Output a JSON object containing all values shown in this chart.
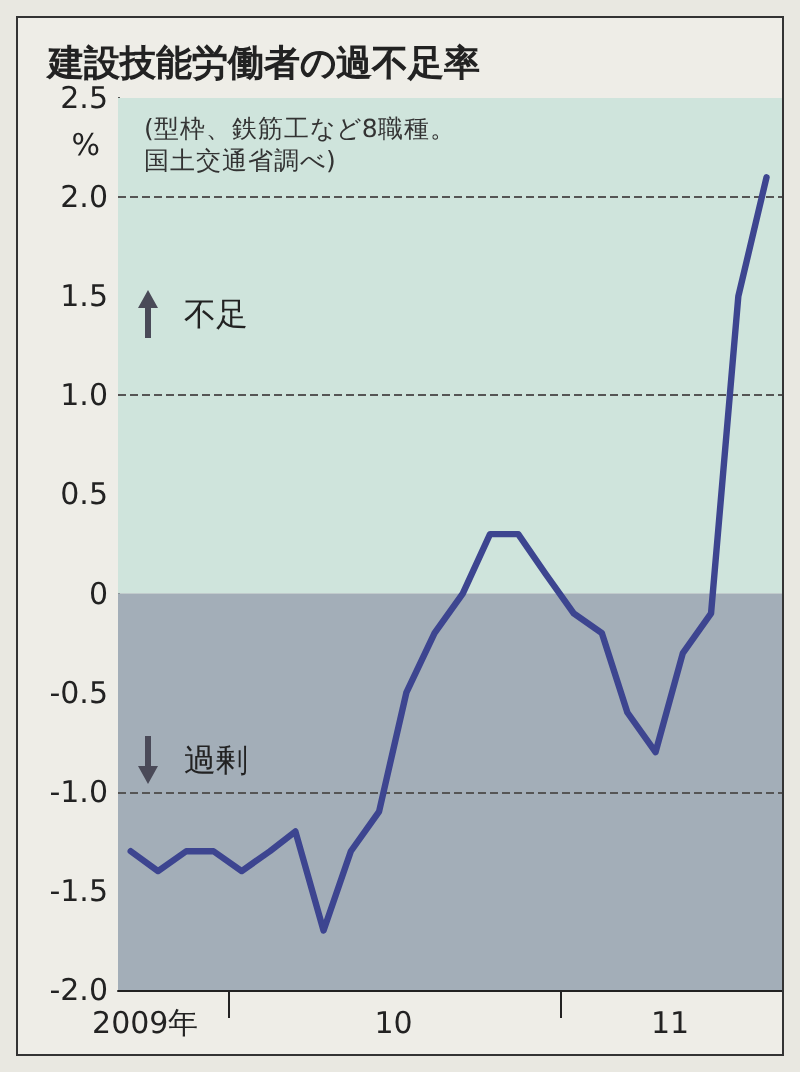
{
  "chart_data": {
    "type": "line",
    "title": "建設技能労働者の過不足率",
    "subtitle": "(型枠、鉄筋工など8職種。国土交通省調べ)",
    "ylabel": "%",
    "x": [
      "2009-09-15",
      "2009-10-15",
      "2009-11-15",
      "2009-12-15",
      "2010-01-15",
      "2010-02-15",
      "2010-03-15",
      "2010-04-15",
      "2010-05-15",
      "2010-06-15",
      "2010-07-15",
      "2010-08-15",
      "2010-09-15",
      "2010-10-15",
      "2010-11-15",
      "2010-12-15",
      "2011-01-15",
      "2011-02-15",
      "2011-03-15",
      "2011-04-15",
      "2011-05-15",
      "2011-06-15",
      "2011-07-15",
      "2011-08-15"
    ],
    "values": [
      -1.3,
      -1.4,
      -1.3,
      -1.3,
      -1.4,
      -1.3,
      -1.2,
      -1.7,
      -1.3,
      -1.1,
      -0.5,
      -0.2,
      0.0,
      0.3,
      0.3,
      0.1,
      -0.1,
      -0.2,
      -0.6,
      -0.8,
      -0.3,
      -0.1,
      1.5,
      2.1
    ],
    "color": "#3d4590",
    "marker": "none",
    "line_style": "solid",
    "xlim": [
      "2009-09-01",
      "2011-09-01"
    ],
    "xticks": [
      {
        "value": "2009-10-01",
        "label": "2009年"
      },
      {
        "value": "2010-01-01",
        "label": null
      },
      {
        "value": "2010-07-01",
        "label": "10"
      },
      {
        "value": "2011-01-01",
        "label": null
      },
      {
        "value": "2011-05-01",
        "label": "11"
      }
    ],
    "ylim": [
      -2,
      2.5
    ],
    "yticks": [
      {
        "value": -2,
        "label": "-2.0"
      },
      -1.5,
      {
        "value": -1,
        "label": "-1.0"
      },
      -0.5,
      0,
      0.5,
      {
        "value": 1,
        "label": "1.0"
      },
      1.5,
      {
        "value": 2,
        "label": "2.0"
      },
      2.5
    ],
    "bands": [
      {
        "axis": "y",
        "from": 0,
        "to": 2.5,
        "label": "不足",
        "color": "#cfe4dc"
      },
      {
        "axis": "y",
        "from": -2,
        "to": 0,
        "label": "過剰",
        "color": "#a3aeb8"
      }
    ],
    "ref_lines": [
      {
        "axis": "y",
        "value": 2,
        "line_style": "dashed",
        "color": "#555555"
      },
      {
        "axis": "y",
        "value": 1,
        "line_style": "dashed",
        "color": "#555555"
      },
      {
        "axis": "y",
        "value": -1,
        "line_style": "dashed",
        "color": "#555555"
      }
    ]
  }
}
